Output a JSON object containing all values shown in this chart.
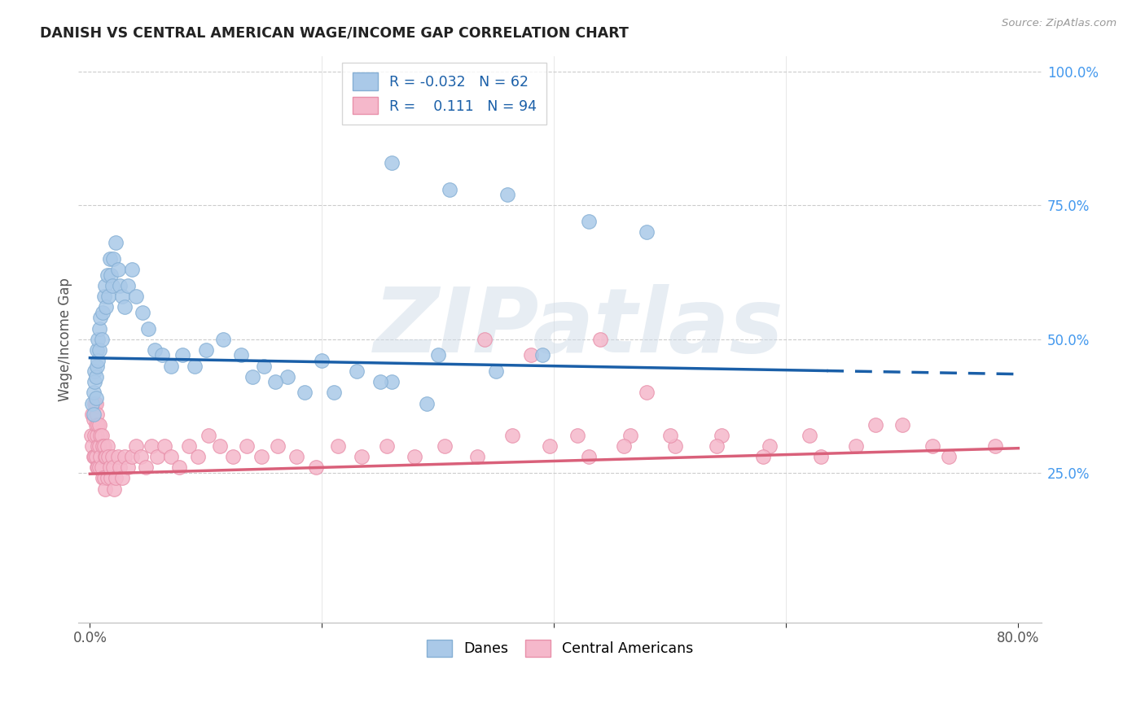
{
  "title": "DANISH VS CENTRAL AMERICAN WAGE/INCOME GAP CORRELATION CHART",
  "source": "Source: ZipAtlas.com",
  "ylabel": "Wage/Income Gap",
  "xlim": [
    0.0,
    0.8
  ],
  "ylim": [
    0.0,
    1.0
  ],
  "background_color": "#ffffff",
  "grid_color": "#cccccc",
  "danes_color": "#aac9e8",
  "danes_edge_color": "#85afd4",
  "central_color": "#f5b8cb",
  "central_edge_color": "#e890aa",
  "danes_line_color": "#1a5fa8",
  "central_line_color": "#d9607a",
  "danes_R": "-0.032",
  "danes_N": "62",
  "central_R": "0.111",
  "central_N": "94",
  "legend_label_danes": "Danes",
  "legend_label_central": "Central Americans",
  "watermark": "ZIPatlas",
  "danes_intercept": 0.465,
  "danes_slope": -0.038,
  "central_intercept": 0.248,
  "central_slope": 0.06,
  "danes_x": [
    0.002,
    0.003,
    0.003,
    0.004,
    0.004,
    0.005,
    0.005,
    0.006,
    0.006,
    0.007,
    0.007,
    0.008,
    0.008,
    0.009,
    0.01,
    0.011,
    0.012,
    0.013,
    0.014,
    0.015,
    0.016,
    0.017,
    0.018,
    0.019,
    0.02,
    0.022,
    0.024,
    0.026,
    0.028,
    0.03,
    0.033,
    0.036,
    0.04,
    0.045,
    0.05,
    0.056,
    0.062,
    0.07,
    0.08,
    0.09,
    0.1,
    0.115,
    0.13,
    0.15,
    0.17,
    0.2,
    0.23,
    0.26,
    0.3,
    0.35,
    0.39,
    0.26,
    0.31,
    0.36,
    0.43,
    0.48,
    0.14,
    0.16,
    0.185,
    0.21,
    0.25,
    0.29
  ],
  "danes_y": [
    0.38,
    0.4,
    0.36,
    0.44,
    0.42,
    0.43,
    0.39,
    0.48,
    0.45,
    0.5,
    0.46,
    0.52,
    0.48,
    0.54,
    0.5,
    0.55,
    0.58,
    0.6,
    0.56,
    0.62,
    0.58,
    0.65,
    0.62,
    0.6,
    0.65,
    0.68,
    0.63,
    0.6,
    0.58,
    0.56,
    0.6,
    0.63,
    0.58,
    0.55,
    0.52,
    0.48,
    0.47,
    0.45,
    0.47,
    0.45,
    0.48,
    0.5,
    0.47,
    0.45,
    0.43,
    0.46,
    0.44,
    0.42,
    0.47,
    0.44,
    0.47,
    0.83,
    0.78,
    0.77,
    0.72,
    0.7,
    0.43,
    0.42,
    0.4,
    0.4,
    0.42,
    0.38
  ],
  "central_x": [
    0.001,
    0.002,
    0.002,
    0.003,
    0.003,
    0.004,
    0.004,
    0.004,
    0.005,
    0.005,
    0.005,
    0.006,
    0.006,
    0.006,
    0.007,
    0.007,
    0.007,
    0.008,
    0.008,
    0.008,
    0.009,
    0.009,
    0.01,
    0.01,
    0.011,
    0.011,
    0.012,
    0.012,
    0.013,
    0.013,
    0.014,
    0.015,
    0.015,
    0.016,
    0.017,
    0.018,
    0.019,
    0.02,
    0.021,
    0.022,
    0.024,
    0.026,
    0.028,
    0.03,
    0.033,
    0.036,
    0.04,
    0.044,
    0.048,
    0.053,
    0.058,
    0.064,
    0.07,
    0.077,
    0.085,
    0.093,
    0.102,
    0.112,
    0.123,
    0.135,
    0.148,
    0.162,
    0.178,
    0.195,
    0.214,
    0.234,
    0.256,
    0.28,
    0.306,
    0.334,
    0.364,
    0.396,
    0.43,
    0.466,
    0.504,
    0.544,
    0.586,
    0.63,
    0.677,
    0.726,
    0.42,
    0.46,
    0.5,
    0.54,
    0.58,
    0.62,
    0.66,
    0.7,
    0.74,
    0.78,
    0.34,
    0.38,
    0.44,
    0.48
  ],
  "central_y": [
    0.32,
    0.36,
    0.3,
    0.35,
    0.28,
    0.38,
    0.32,
    0.28,
    0.38,
    0.34,
    0.28,
    0.36,
    0.32,
    0.26,
    0.34,
    0.3,
    0.26,
    0.34,
    0.3,
    0.26,
    0.32,
    0.28,
    0.32,
    0.26,
    0.3,
    0.24,
    0.3,
    0.24,
    0.28,
    0.22,
    0.28,
    0.3,
    0.24,
    0.28,
    0.26,
    0.24,
    0.28,
    0.26,
    0.22,
    0.24,
    0.28,
    0.26,
    0.24,
    0.28,
    0.26,
    0.28,
    0.3,
    0.28,
    0.26,
    0.3,
    0.28,
    0.3,
    0.28,
    0.26,
    0.3,
    0.28,
    0.32,
    0.3,
    0.28,
    0.3,
    0.28,
    0.3,
    0.28,
    0.26,
    0.3,
    0.28,
    0.3,
    0.28,
    0.3,
    0.28,
    0.32,
    0.3,
    0.28,
    0.32,
    0.3,
    0.32,
    0.3,
    0.28,
    0.34,
    0.3,
    0.32,
    0.3,
    0.32,
    0.3,
    0.28,
    0.32,
    0.3,
    0.34,
    0.28,
    0.3,
    0.5,
    0.47,
    0.5,
    0.4
  ]
}
